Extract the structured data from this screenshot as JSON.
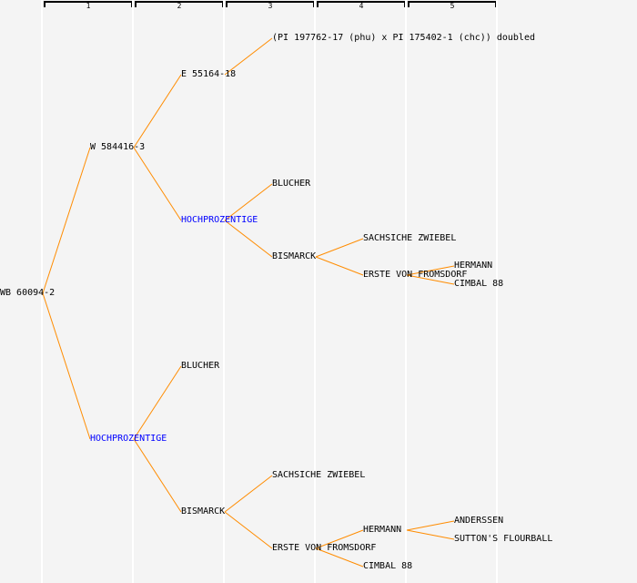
{
  "generations": [
    "1",
    "2",
    "3",
    "4",
    "5"
  ],
  "colors": {
    "line": "#ff8c00",
    "highlight": "#0000ff",
    "text": "#000000"
  },
  "tree": {
    "label": "WB 60094-2",
    "children": [
      {
        "label": "W 584416-3",
        "children": [
          {
            "label": "E 55164-18",
            "children": [
              {
                "label": "(PI 197762-17 (phu) x PI 175402-1 (chc)) doubled"
              }
            ]
          },
          {
            "label": "HOCHPROZENTIGE",
            "highlight": true,
            "children": [
              {
                "label": "BLUCHER"
              },
              {
                "label": "BISMARCK",
                "children": [
                  {
                    "label": "SACHSICHE ZWIEBEL"
                  },
                  {
                    "label": "ERSTE VON FROMSDORF",
                    "children": [
                      {
                        "label": "HERMANN"
                      },
                      {
                        "label": "CIMBAL 88"
                      }
                    ]
                  }
                ]
              }
            ]
          }
        ]
      },
      {
        "label": "HOCHPROZENTIGE",
        "highlight": true,
        "children": [
          {
            "label": "BLUCHER"
          },
          {
            "label": "BISMARCK",
            "children": [
              {
                "label": "SACHSICHE ZWIEBEL"
              },
              {
                "label": "ERSTE VON FROMSDORF",
                "children": [
                  {
                    "label": "HERMANN",
                    "children": [
                      {
                        "label": "ANDERSSEN"
                      },
                      {
                        "label": "SUTTON'S FLOURBALL"
                      }
                    ]
                  },
                  {
                    "label": "CIMBAL 88"
                  }
                ]
              }
            ]
          }
        ]
      }
    ]
  }
}
